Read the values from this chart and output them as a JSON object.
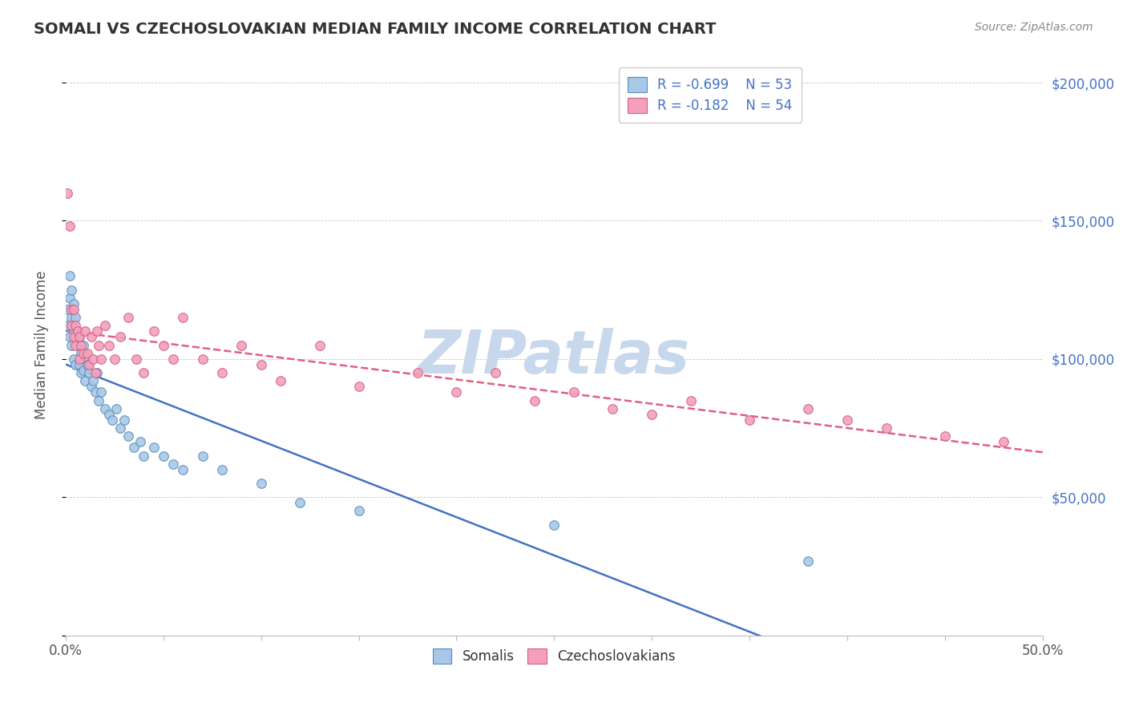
{
  "title": "SOMALI VS CZECHOSLOVAKIAN MEDIAN FAMILY INCOME CORRELATION CHART",
  "source_text": "Source: ZipAtlas.com",
  "ylabel": "Median Family Income",
  "xlim": [
    0.0,
    0.5
  ],
  "ylim": [
    0,
    210000
  ],
  "xticks": [
    0.0,
    0.05,
    0.1,
    0.15,
    0.2,
    0.25,
    0.3,
    0.35,
    0.4,
    0.45,
    0.5
  ],
  "xticklabels": [
    "0.0%",
    "",
    "",
    "",
    "",
    "",
    "",
    "",
    "",
    "",
    "50.0%"
  ],
  "ytick_positions": [
    0,
    50000,
    100000,
    150000,
    200000
  ],
  "ytick_labels": [
    "",
    "$50,000",
    "$100,000",
    "$150,000",
    "$200,000"
  ],
  "somali_color": "#A8C8E8",
  "somali_edge_color": "#5B8DB8",
  "czech_color": "#F4A0BC",
  "czech_edge_color": "#D06080",
  "somali_line_color": "#4472C4",
  "czech_line_color": "#E06080",
  "legend_R_somali": "-0.699",
  "legend_N_somali": "53",
  "legend_R_czech": "-0.182",
  "legend_N_czech": "54",
  "watermark": "ZIPatlas",
  "watermark_color": "#C8D8EC",
  "somali_x": [
    0.001,
    0.001,
    0.002,
    0.002,
    0.002,
    0.003,
    0.003,
    0.003,
    0.004,
    0.004,
    0.004,
    0.005,
    0.005,
    0.005,
    0.006,
    0.006,
    0.007,
    0.007,
    0.008,
    0.008,
    0.009,
    0.009,
    0.01,
    0.01,
    0.011,
    0.012,
    0.013,
    0.014,
    0.015,
    0.016,
    0.017,
    0.018,
    0.02,
    0.022,
    0.024,
    0.026,
    0.028,
    0.03,
    0.032,
    0.035,
    0.038,
    0.04,
    0.045,
    0.05,
    0.055,
    0.06,
    0.07,
    0.08,
    0.1,
    0.12,
    0.15,
    0.25,
    0.38
  ],
  "somali_y": [
    118000,
    112000,
    130000,
    122000,
    108000,
    125000,
    115000,
    105000,
    120000,
    110000,
    100000,
    115000,
    108000,
    98000,
    110000,
    105000,
    108000,
    98000,
    102000,
    95000,
    105000,
    96000,
    100000,
    92000,
    98000,
    95000,
    90000,
    92000,
    88000,
    95000,
    85000,
    88000,
    82000,
    80000,
    78000,
    82000,
    75000,
    78000,
    72000,
    68000,
    70000,
    65000,
    68000,
    65000,
    62000,
    60000,
    65000,
    60000,
    55000,
    48000,
    45000,
    40000,
    27000
  ],
  "czech_x": [
    0.001,
    0.002,
    0.003,
    0.003,
    0.004,
    0.004,
    0.005,
    0.005,
    0.006,
    0.007,
    0.007,
    0.008,
    0.009,
    0.01,
    0.011,
    0.012,
    0.013,
    0.014,
    0.015,
    0.016,
    0.017,
    0.018,
    0.02,
    0.022,
    0.025,
    0.028,
    0.032,
    0.036,
    0.04,
    0.045,
    0.05,
    0.055,
    0.06,
    0.07,
    0.08,
    0.09,
    0.1,
    0.11,
    0.13,
    0.15,
    0.18,
    0.2,
    0.22,
    0.24,
    0.26,
    0.28,
    0.3,
    0.32,
    0.35,
    0.38,
    0.4,
    0.42,
    0.45,
    0.48
  ],
  "czech_y": [
    160000,
    148000,
    118000,
    112000,
    108000,
    118000,
    112000,
    105000,
    110000,
    108000,
    100000,
    105000,
    102000,
    110000,
    102000,
    98000,
    108000,
    100000,
    95000,
    110000,
    105000,
    100000,
    112000,
    105000,
    100000,
    108000,
    115000,
    100000,
    95000,
    110000,
    105000,
    100000,
    115000,
    100000,
    95000,
    105000,
    98000,
    92000,
    105000,
    90000,
    95000,
    88000,
    95000,
    85000,
    88000,
    82000,
    80000,
    85000,
    78000,
    82000,
    78000,
    75000,
    72000,
    70000
  ]
}
